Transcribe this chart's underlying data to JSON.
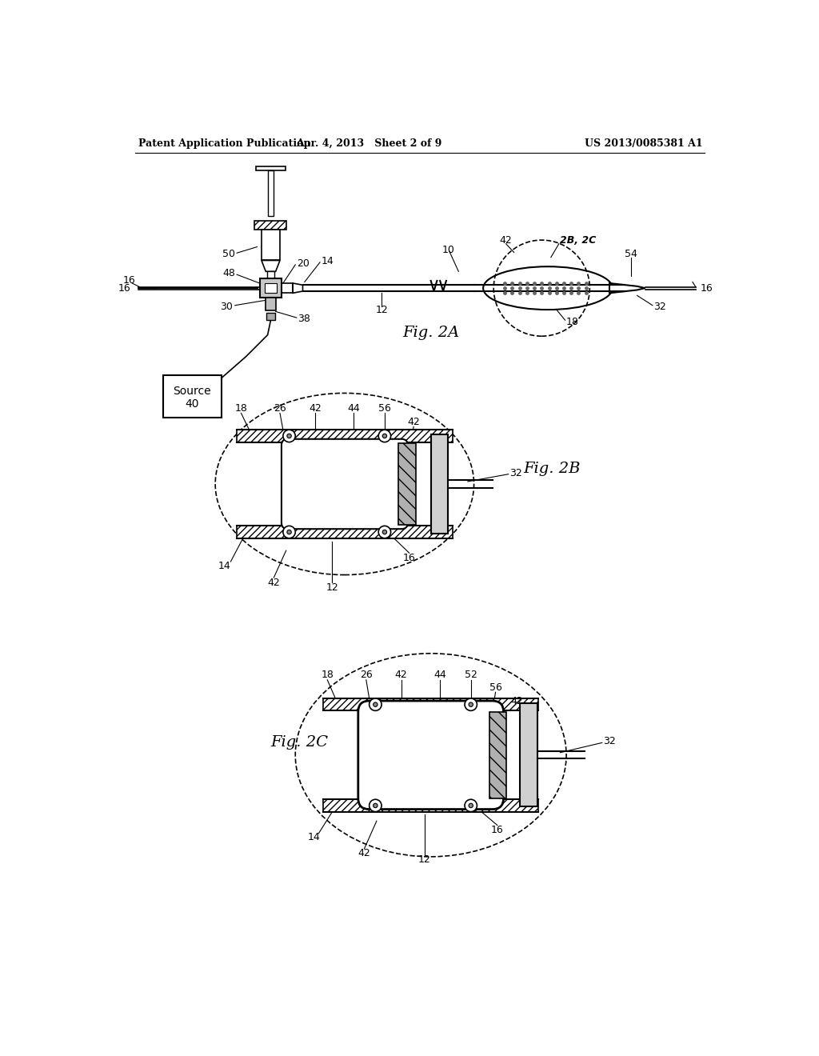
{
  "header_left": "Patent Application Publication",
  "header_mid": "Apr. 4, 2013   Sheet 2 of 9",
  "header_right": "US 2013/0085381 A1",
  "bg": "#ffffff",
  "lc": "#000000",
  "gc": "#777777",
  "hc": "#aaaaaa",
  "fig2a_label": "Fig. 2A",
  "fig2b_label": "Fig. 2B",
  "fig2c_label": "Fig. 2C"
}
